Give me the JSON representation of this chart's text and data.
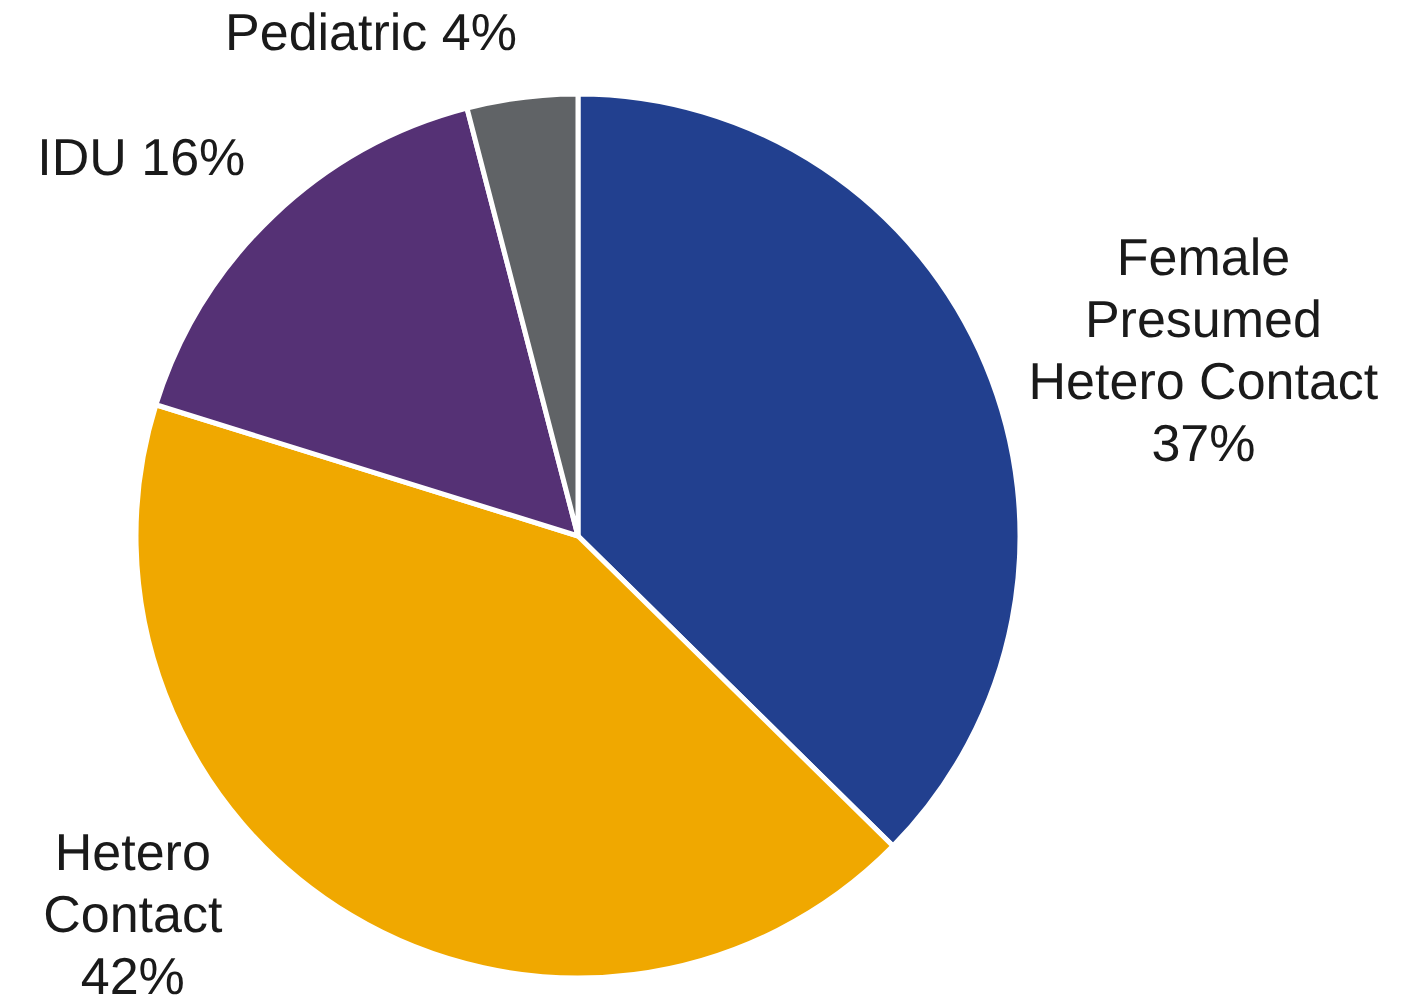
{
  "chart_data": {
    "type": "pie",
    "categories": [
      "Female Presumed Hetero Contact",
      "Hetero Contact",
      "IDU",
      "Pediatric"
    ],
    "values": [
      37,
      42,
      16,
      4
    ],
    "value_labels": [
      "37%",
      "42%",
      "16%",
      "4%"
    ],
    "colors": [
      "#22408f",
      "#f0a800",
      "#553175",
      "#606366"
    ]
  }
}
